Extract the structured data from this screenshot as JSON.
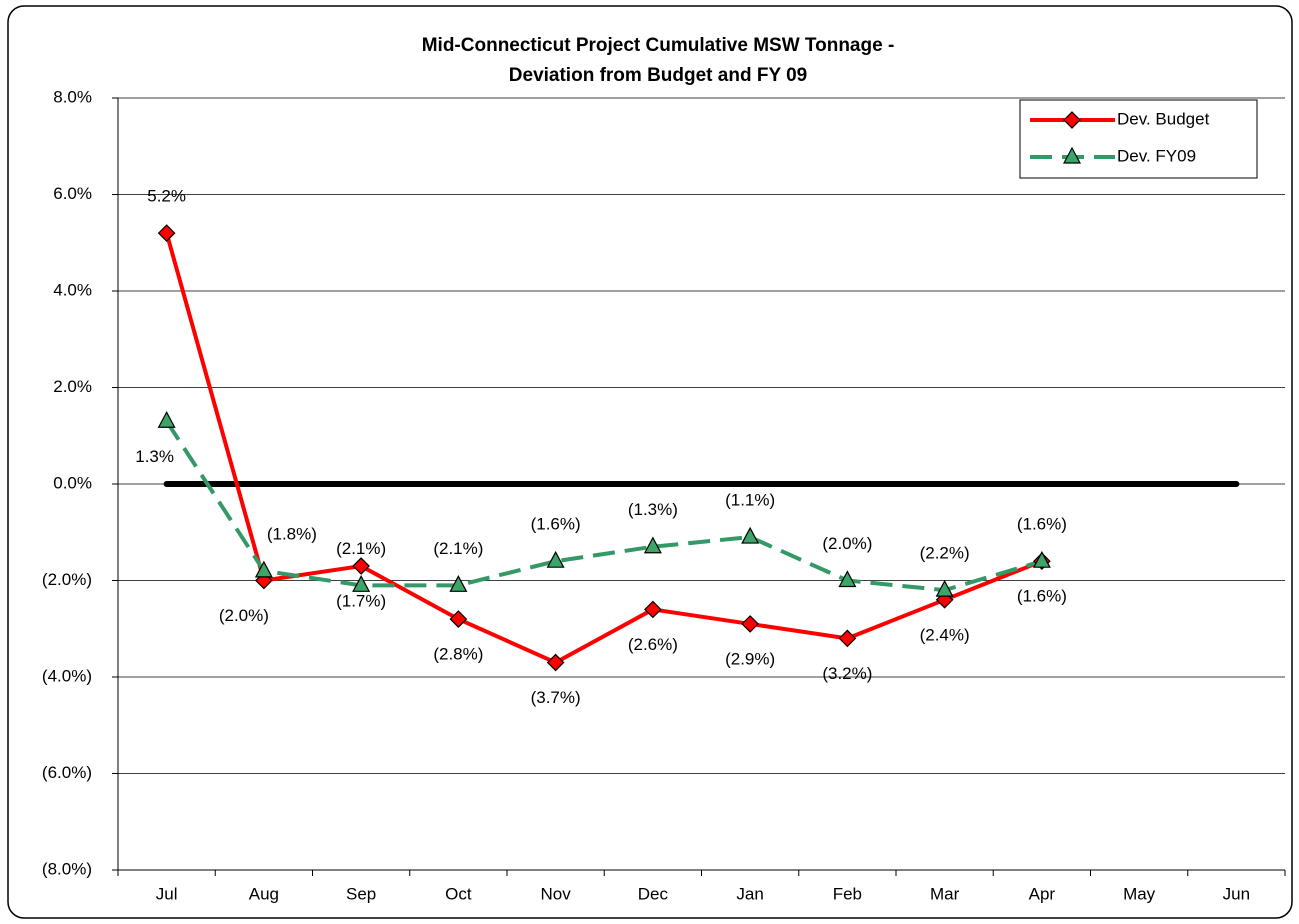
{
  "chart_data": {
    "type": "line",
    "title": [
      "Mid-Connecticut Project Cumulative MSW Tonnage -",
      "Deviation from Budget and FY 09"
    ],
    "categories": [
      "Jul",
      "Aug",
      "Sep",
      "Oct",
      "Nov",
      "Dec",
      "Jan",
      "Feb",
      "Mar",
      "Apr",
      "May",
      "Jun"
    ],
    "series": [
      {
        "name": "Dev. Budget",
        "color": "#ff0000",
        "marker": "diamond",
        "values": [
          5.2,
          -2.0,
          -1.7,
          -2.8,
          -3.7,
          -2.6,
          -2.9,
          -3.2,
          -2.4,
          -1.6,
          null,
          null
        ],
        "value_labels": [
          "5.2%",
          "(2.0%)",
          "(1.7%)",
          "(2.8%)",
          "(3.7%)",
          "(2.6%)",
          "(2.9%)",
          "(3.2%)",
          "(2.4%)",
          "(1.6%)",
          null,
          null
        ]
      },
      {
        "name": "Dev. FY09",
        "color": "#339966",
        "marker": "triangle",
        "dashed": true,
        "values": [
          1.3,
          -1.8,
          -2.1,
          -2.1,
          -1.6,
          -1.3,
          -1.1,
          -2.0,
          -2.2,
          -1.6,
          null,
          null
        ],
        "value_labels": [
          "1.3%",
          "(1.8%)",
          "(2.1%)",
          "(2.1%)",
          "(1.6%)",
          "(1.3%)",
          "(1.1%)",
          "(2.0%)",
          "(2.2%)",
          "(1.6%)",
          null,
          null
        ]
      }
    ],
    "ylim": [
      -8,
      8
    ],
    "yticks": [
      {
        "value": -8,
        "label": "(8.0%)"
      },
      {
        "value": -6,
        "label": "(6.0%)"
      },
      {
        "value": -4,
        "label": "(4.0%)"
      },
      {
        "value": -2,
        "label": "(2.0%)"
      },
      {
        "value": 0,
        "label": "0.0%"
      },
      {
        "value": 2,
        "label": "2.0%"
      },
      {
        "value": 4,
        "label": "4.0%"
      },
      {
        "value": 6,
        "label": "6.0%"
      },
      {
        "value": 8,
        "label": "8.0%"
      }
    ],
    "grid": true,
    "legend": "upper right"
  }
}
